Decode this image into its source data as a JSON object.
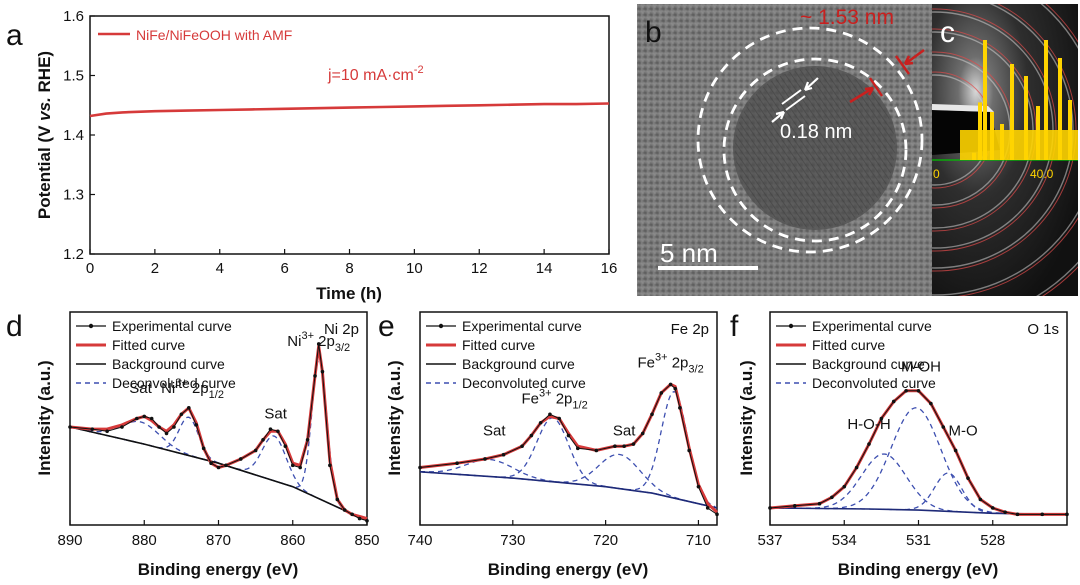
{
  "panels": {
    "a": "a",
    "b": "b",
    "c": "c",
    "d": "d",
    "e": "e",
    "f": "f"
  },
  "colors": {
    "red": "#d63a3a",
    "navy": "#1e2a78",
    "dashed": "#3d4fb0",
    "black": "#111111",
    "tem_annot": "#c8201f",
    "saed_yellow": "#ffd400"
  },
  "tem": {
    "shell_label": "~ 1.53 nm",
    "lattice_label": "0.18 nm",
    "scale_label": "5 nm"
  },
  "saed": {
    "tick_0": "0",
    "tick_40": "40.0"
  },
  "chart_data": [
    {
      "id": "a",
      "type": "line",
      "xlabel": "Time (h)",
      "ylabel": "Potential (V vs. RHE)",
      "xlim": [
        0,
        16
      ],
      "ylim": [
        1.2,
        1.6
      ],
      "xticks": [
        0,
        2,
        4,
        6,
        8,
        10,
        12,
        14,
        16
      ],
      "yticks": [
        1.2,
        1.3,
        1.4,
        1.5,
        1.6
      ],
      "annotation": "j=10 mA·cm",
      "annotation_sup": "-2",
      "legend_position": "top-left",
      "series": [
        {
          "name": "NiFe/NiFeOOH with AMF",
          "color": "#d63a3a",
          "x": [
            0,
            0.5,
            1,
            2,
            3,
            4,
            5,
            6,
            7,
            8,
            9,
            10,
            11,
            12,
            13,
            14,
            15,
            16
          ],
          "y": [
            1.432,
            1.436,
            1.438,
            1.44,
            1.441,
            1.442,
            1.443,
            1.444,
            1.445,
            1.446,
            1.447,
            1.448,
            1.449,
            1.45,
            1.451,
            1.452,
            1.452,
            1.453
          ]
        }
      ]
    },
    {
      "id": "d",
      "type": "line",
      "xlabel": "Binding energy (eV)",
      "ylabel": "Intensity (a.u.)",
      "xlim": [
        890,
        850
      ],
      "xticks": [
        890,
        880,
        870,
        860,
        850
      ],
      "ylim": [
        0,
        1
      ],
      "region_label": "Ni 2p",
      "legend_position": "top-left",
      "legend": [
        "Experimental curve",
        "Fitted curve",
        "Background curve",
        "Deconvoluted curve"
      ],
      "peak_labels": [
        {
          "text": "Sat",
          "x": 880.5,
          "y": 0.62
        },
        {
          "text": "Ni",
          "sup": "3+",
          "tail": " 2p",
          "sub": "1/2",
          "x": 873.5,
          "y": 0.62
        },
        {
          "text": "Sat",
          "x": 862.3,
          "y": 0.5
        },
        {
          "text": "Ni",
          "sup": "3+",
          "tail": " 2p",
          "sub": "3/2",
          "x": 856.5,
          "y": 0.84
        }
      ],
      "series": [
        {
          "name": "Experimental curve",
          "color": "#111111",
          "x": [
            890,
            887,
            885,
            883,
            881,
            880,
            879,
            878,
            877,
            876,
            875,
            874,
            873,
            872,
            871,
            870,
            869,
            867,
            865,
            864,
            863,
            862,
            861,
            860,
            859,
            858,
            857,
            856.5,
            856,
            855,
            854,
            853,
            852,
            851,
            850
          ],
          "y": [
            0.46,
            0.45,
            0.44,
            0.46,
            0.5,
            0.51,
            0.5,
            0.46,
            0.43,
            0.46,
            0.52,
            0.55,
            0.47,
            0.36,
            0.29,
            0.27,
            0.28,
            0.31,
            0.35,
            0.4,
            0.45,
            0.44,
            0.37,
            0.28,
            0.27,
            0.4,
            0.7,
            0.85,
            0.72,
            0.28,
            0.12,
            0.07,
            0.05,
            0.03,
            0.02
          ]
        },
        {
          "name": "Fitted curve",
          "color": "#d63a3a",
          "x": [
            890,
            887,
            885,
            883,
            881,
            880,
            879,
            878,
            877,
            876,
            875,
            874,
            873,
            872,
            871,
            870,
            869,
            867,
            865,
            864,
            863,
            862,
            861,
            860,
            859,
            858,
            857,
            856.5,
            856,
            855,
            854,
            853,
            852,
            851,
            850
          ],
          "y": [
            0.46,
            0.45,
            0.45,
            0.47,
            0.5,
            0.51,
            0.49,
            0.46,
            0.44,
            0.47,
            0.52,
            0.55,
            0.48,
            0.36,
            0.29,
            0.27,
            0.28,
            0.31,
            0.35,
            0.4,
            0.44,
            0.44,
            0.38,
            0.29,
            0.28,
            0.4,
            0.7,
            0.84,
            0.72,
            0.3,
            0.12,
            0.07,
            0.05,
            0.04,
            0.03
          ]
        },
        {
          "name": "Background curve",
          "color": "#111111",
          "x": [
            890,
            880,
            870,
            860,
            850
          ],
          "y": [
            0.46,
            0.38,
            0.29,
            0.18,
            0.02
          ]
        }
      ],
      "components": [
        {
          "center": 880.5,
          "height": 0.1,
          "width": 2.6
        },
        {
          "center": 874,
          "height": 0.18,
          "width": 1.3
        },
        {
          "center": 862.5,
          "height": 0.21,
          "width": 1.6
        },
        {
          "center": 856.4,
          "height": 0.66,
          "width": 1.0
        }
      ]
    },
    {
      "id": "e",
      "type": "line",
      "xlabel": "Binding energy (eV)",
      "ylabel": "Intensity (a.u.)",
      "xlim": [
        740,
        708
      ],
      "xticks": [
        740,
        730,
        720,
        710
      ],
      "ylim": [
        0,
        1
      ],
      "region_label": "Fe 2p",
      "legend_position": "top-left",
      "legend": [
        "Experimental curve",
        "Fitted curve",
        "Background curve",
        "Deconvoluted curve"
      ],
      "peak_labels": [
        {
          "text": "Sat",
          "x": 732,
          "y": 0.42
        },
        {
          "text": "Fe",
          "sup": "3+",
          "tail": " 2p",
          "sub": "1/2",
          "x": 725.5,
          "y": 0.57
        },
        {
          "text": "Sat",
          "x": 718,
          "y": 0.42
        },
        {
          "text": "Fe",
          "sup": "3+",
          "tail": " 2p",
          "sub": "3/2",
          "x": 713,
          "y": 0.74
        }
      ],
      "series": [
        {
          "name": "Experimental curve",
          "color": "#111111",
          "x": [
            740,
            736,
            733,
            731,
            729,
            728,
            727,
            726,
            725,
            724,
            723,
            721,
            719,
            718,
            717,
            716,
            715,
            714,
            713,
            712.5,
            712,
            711,
            710,
            709,
            708
          ],
          "y": [
            0.27,
            0.29,
            0.31,
            0.33,
            0.37,
            0.42,
            0.48,
            0.52,
            0.5,
            0.42,
            0.36,
            0.35,
            0.37,
            0.37,
            0.38,
            0.43,
            0.52,
            0.62,
            0.66,
            0.64,
            0.55,
            0.35,
            0.18,
            0.08,
            0.05
          ]
        },
        {
          "name": "Fitted curve",
          "color": "#d63a3a",
          "x": [
            740,
            736,
            733,
            731,
            729,
            728,
            727,
            726,
            725,
            724,
            723,
            721,
            719,
            718,
            717,
            716,
            715,
            714,
            713,
            712.5,
            712,
            711,
            710,
            709,
            708
          ],
          "y": [
            0.27,
            0.29,
            0.31,
            0.33,
            0.37,
            0.42,
            0.48,
            0.51,
            0.5,
            0.43,
            0.37,
            0.35,
            0.37,
            0.37,
            0.38,
            0.43,
            0.52,
            0.62,
            0.66,
            0.65,
            0.56,
            0.36,
            0.19,
            0.1,
            0.06
          ]
        },
        {
          "name": "Background curve",
          "color": "#1e2a78",
          "x": [
            740,
            730,
            720,
            715,
            710,
            708
          ],
          "y": [
            0.25,
            0.22,
            0.18,
            0.15,
            0.1,
            0.08
          ]
        }
      ],
      "components": [
        {
          "center": 732.5,
          "height": 0.08,
          "width": 2.5
        },
        {
          "center": 725.7,
          "height": 0.3,
          "width": 1.7
        },
        {
          "center": 718.5,
          "height": 0.16,
          "width": 2.2
        },
        {
          "center": 712.6,
          "height": 0.5,
          "width": 1.4
        }
      ]
    },
    {
      "id": "f",
      "type": "line",
      "xlabel": "Binding energy (eV)",
      "ylabel": "Intensity (a.u.)",
      "xlim": [
        537,
        525
      ],
      "xticks": [
        537,
        534,
        531,
        528
      ],
      "ylim": [
        0,
        1
      ],
      "region_label": "O 1s",
      "legend_position": "top-left",
      "legend": [
        "Experimental curve",
        "Fitted curve",
        "Background curve",
        "Deconvoluted curve"
      ],
      "peak_labels": [
        {
          "text": "H-O-H",
          "x": 533,
          "y": 0.45
        },
        {
          "text": "M-OH",
          "x": 530.9,
          "y": 0.72
        },
        {
          "text": "M-O",
          "x": 529.2,
          "y": 0.42
        }
      ],
      "series": [
        {
          "name": "Experimental curve",
          "color": "#111111",
          "x": [
            537,
            536,
            535,
            534.5,
            534,
            533.5,
            533,
            532.5,
            532,
            531.5,
            531,
            530.5,
            530,
            529.5,
            529,
            528.5,
            528,
            527.5,
            527,
            526,
            525
          ],
          "y": [
            0.08,
            0.09,
            0.1,
            0.13,
            0.18,
            0.27,
            0.38,
            0.5,
            0.58,
            0.63,
            0.63,
            0.57,
            0.46,
            0.35,
            0.22,
            0.12,
            0.08,
            0.06,
            0.05,
            0.05,
            0.05
          ]
        },
        {
          "name": "Fitted curve",
          "color": "#d63a3a",
          "x": [
            537,
            536,
            535,
            534.5,
            534,
            533.5,
            533,
            532.5,
            532,
            531.5,
            531,
            530.5,
            530,
            529.5,
            529,
            528.5,
            528,
            527.5,
            527,
            526,
            525
          ],
          "y": [
            0.08,
            0.09,
            0.1,
            0.13,
            0.18,
            0.27,
            0.38,
            0.5,
            0.58,
            0.63,
            0.63,
            0.57,
            0.46,
            0.35,
            0.22,
            0.12,
            0.08,
            0.06,
            0.05,
            0.05,
            0.05
          ]
        },
        {
          "name": "Background curve",
          "color": "#1e2a78",
          "x": [
            537,
            533,
            531,
            528,
            525
          ],
          "y": [
            0.08,
            0.075,
            0.07,
            0.055,
            0.05
          ]
        }
      ],
      "components": [
        {
          "center": 532.4,
          "height": 0.26,
          "width": 0.9
        },
        {
          "center": 531.1,
          "height": 0.48,
          "width": 1.0
        },
        {
          "center": 529.8,
          "height": 0.18,
          "width": 0.55
        }
      ]
    }
  ]
}
